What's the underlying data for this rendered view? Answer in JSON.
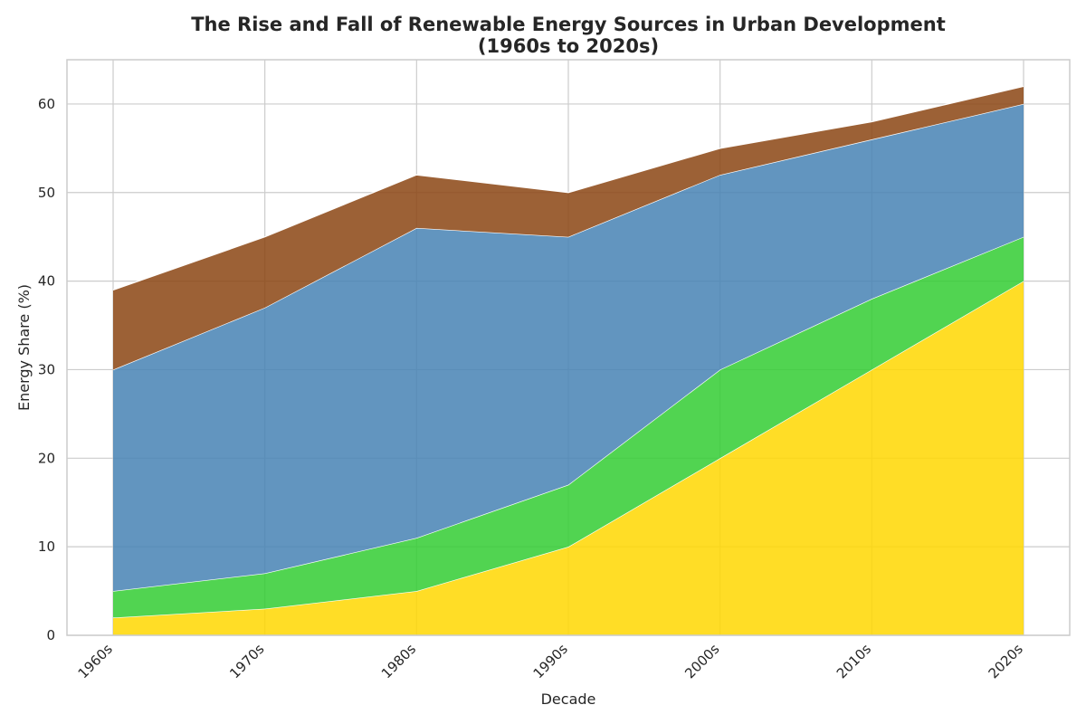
{
  "chart_data": {
    "type": "area",
    "stacked": true,
    "title_lines": [
      "The Rise and Fall of Renewable Energy Sources in Urban Development",
      "(1960s to 2020s)"
    ],
    "xlabel": "Decade",
    "ylabel": "Energy Share (%)",
    "categories": [
      "1960s",
      "1970s",
      "1980s",
      "1990s",
      "2000s",
      "2010s",
      "2020s"
    ],
    "ylim": [
      0,
      65
    ],
    "yticks": [
      0,
      10,
      20,
      30,
      40,
      50,
      60
    ],
    "grid": true,
    "legend": "none",
    "series": [
      {
        "color": "#FFD700",
        "values": [
          2,
          3,
          5,
          10,
          20,
          30,
          40
        ]
      },
      {
        "color": "#32CD32",
        "values": [
          3,
          4,
          6,
          7,
          10,
          8,
          5
        ]
      },
      {
        "color": "#4682B4",
        "values": [
          25,
          30,
          35,
          28,
          22,
          18,
          15
        ]
      },
      {
        "color": "#8B4513",
        "values": [
          9,
          8,
          6,
          5,
          3,
          2,
          2
        ]
      }
    ]
  }
}
